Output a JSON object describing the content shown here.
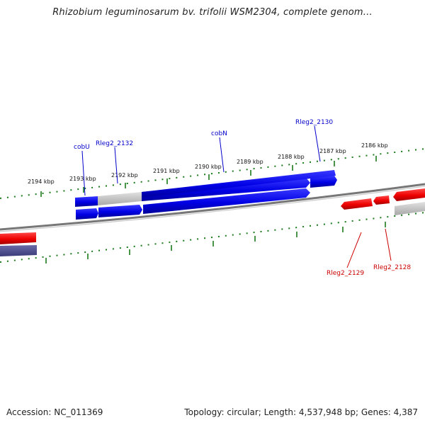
{
  "title": "Rhizobium leguminosarum bv. trifolii WSM2304, complete genom...",
  "footer": {
    "accession": "Accession: NC_011369",
    "summary": "Topology: circular; Length: 4,537,948 bp; Genes: 4,387"
  },
  "ticks": [
    "2194 kbp",
    "2193 kbp",
    "2192 kbp",
    "2191 kbp",
    "2190 kbp",
    "2189 kbp",
    "2188 kbp",
    "2187 kbp",
    "2186 kbp"
  ],
  "genes": {
    "cobU": "cobU",
    "rleg2_2132": "Rleg2_2132",
    "cobN": "cobN",
    "rleg2_2130": "Rleg2_2130",
    "rleg2_2129": "Rleg2_2129",
    "rleg2_2128": "Rleg2_2128"
  },
  "colors": {
    "forward_gene": "#0000ee",
    "reverse_gene": "#ee0000",
    "backbone": "#888888",
    "tick": "#1a7a1a",
    "blue_label": "#0000cc",
    "red_label": "#cc0000"
  }
}
